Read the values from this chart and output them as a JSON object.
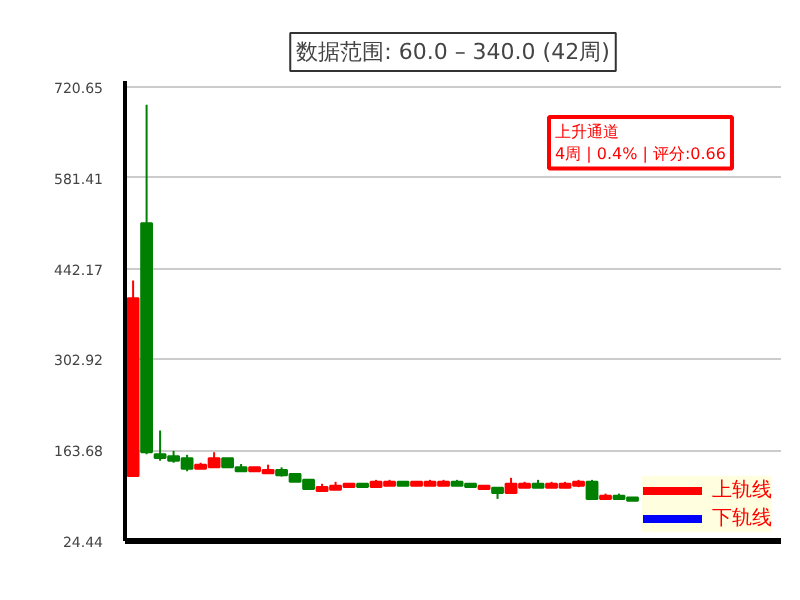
{
  "chart_data": {
    "type": "candlestick",
    "title": "数据范围: 60.0 – 340.0 (42周)",
    "categories": [
      null,
      null,
      null,
      null,
      null,
      null,
      null,
      null,
      null,
      null,
      null,
      null,
      null,
      null,
      null,
      null,
      null,
      null,
      null,
      null,
      null,
      null,
      null,
      null,
      null,
      null,
      null,
      null,
      null,
      null,
      null,
      null,
      null,
      null,
      null,
      null,
      null,
      null,
      null,
      null,
      null,
      null
    ],
    "ohlc": [
      [
        124.3,
        424.0,
        124.3,
        396.8
      ],
      [
        511.8,
        693.4,
        157.6,
        160.7
      ],
      [
        157.6,
        193.9,
        147.6,
        151.6
      ],
      [
        154.6,
        162.7,
        144.5,
        147.5
      ],
      [
        151.5,
        156.6,
        131.4,
        135.4
      ],
      [
        135.4,
        144.5,
        135.4,
        141.5
      ],
      [
        137.4,
        160.6,
        137.4,
        151.5
      ],
      [
        151.5,
        151.5,
        137.4,
        137.4
      ],
      [
        137.4,
        142.5,
        131.4,
        131.4
      ],
      [
        131.4,
        137.4,
        131.4,
        137.4
      ],
      [
        128.3,
        141.5,
        128.3,
        133.4
      ],
      [
        133.4,
        137.4,
        123.3,
        125.3
      ],
      [
        127.3,
        127.3,
        115.2,
        115.2
      ],
      [
        118.2,
        118.2,
        104.1,
        104.1
      ],
      [
        101.1,
        112.2,
        101.1,
        107.1
      ],
      [
        103.1,
        115.2,
        103.1,
        109.2
      ],
      [
        107.1,
        112.2,
        107.1,
        112.2
      ],
      [
        112.2,
        112.2,
        107.1,
        107.1
      ],
      [
        107.1,
        118.2,
        107.1,
        115.2
      ],
      [
        109.2,
        118.2,
        109.2,
        115.2
      ],
      [
        115.2,
        115.2,
        109.2,
        109.2
      ],
      [
        109.2,
        115.2,
        109.2,
        115.2
      ],
      [
        109.2,
        118.2,
        109.2,
        115.2
      ],
      [
        109.2,
        118.2,
        109.2,
        115.2
      ],
      [
        115.2,
        118.2,
        109.2,
        109.2
      ],
      [
        112.2,
        112.2,
        107.1,
        107.1
      ],
      [
        104.1,
        109.2,
        104.1,
        109.2
      ],
      [
        106.1,
        106.1,
        89.0,
        98.1
      ],
      [
        98.1,
        121.3,
        98.1,
        112.2
      ],
      [
        106.1,
        115.2,
        106.1,
        112.2
      ],
      [
        112.2,
        118.2,
        106.1,
        106.1
      ],
      [
        106.1,
        115.2,
        106.1,
        112.2
      ],
      [
        106.1,
        115.2,
        106.1,
        112.2
      ],
      [
        109.2,
        118.2,
        107.1,
        115.2
      ],
      [
        115.2,
        118.2,
        89.0,
        89.0
      ],
      [
        89.0,
        97.1,
        89.0,
        94.0
      ],
      [
        94.0,
        97.1,
        89.0,
        89.0
      ],
      [
        91.0,
        91.0,
        86.0,
        86.0
      ],
      null,
      null,
      null,
      null
    ],
    "colors": [
      "#ff0000",
      "#008000",
      "#008000",
      "#008000",
      "#008000",
      "#ff0000",
      "#ff0000",
      "#008000",
      "#008000",
      "#ff0000",
      "#ff0000",
      "#008000",
      "#008000",
      "#008000",
      "#ff0000",
      "#ff0000",
      "#ff0000",
      "#008000",
      "#ff0000",
      "#ff0000",
      "#008000",
      "#ff0000",
      "#ff0000",
      "#ff0000",
      "#008000",
      "#008000",
      "#ff0000",
      "#008000",
      "#ff0000",
      "#ff0000",
      "#008000",
      "#ff0000",
      "#ff0000",
      "#ff0000",
      "#008000",
      "#ff0000",
      "#008000",
      "#008000",
      null,
      null,
      null,
      null
    ],
    "series": [
      {
        "name": "上轨线",
        "type": "line",
        "color": "#ff0000",
        "values": [
          null,
          null,
          null,
          null,
          null,
          null,
          null,
          null,
          null,
          null,
          null,
          null,
          null,
          null,
          null,
          null,
          null,
          null,
          null,
          null,
          null,
          null,
          null,
          null,
          null,
          null,
          null,
          null,
          null,
          null,
          null,
          null,
          null,
          null,
          null,
          null,
          null,
          null,
          null,
          null,
          null,
          null
        ]
      },
      {
        "name": "下轨线",
        "type": "line",
        "color": "#0000ff",
        "values": [
          null,
          null,
          null,
          null,
          null,
          null,
          null,
          null,
          null,
          null,
          null,
          null,
          null,
          null,
          null,
          null,
          null,
          null,
          null,
          null,
          null,
          null,
          null,
          null,
          null,
          null,
          null,
          null,
          null,
          null,
          null,
          null,
          null,
          null,
          null,
          null,
          null,
          null,
          null,
          null,
          null,
          null
        ]
      }
    ],
    "annotations": [
      "上升通道",
      "4周 | 0.4% | 评分:0.66"
    ],
    "ylim": [
      24.44,
      730
    ],
    "yticks": [
      24.44,
      163.68,
      302.92,
      442.17,
      581.41,
      720.65
    ],
    "grid": "y",
    "legend": "bottom right",
    "tick_labels": "y"
  }
}
